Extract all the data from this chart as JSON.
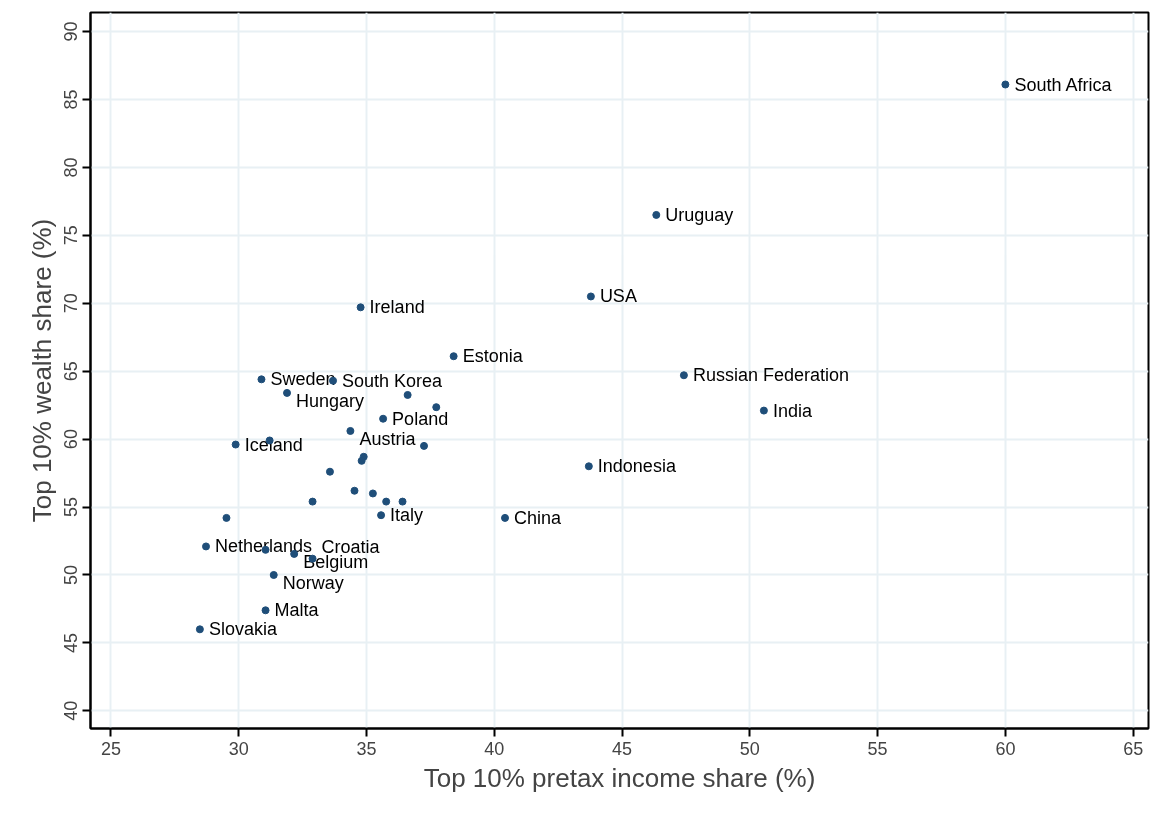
{
  "chart_data": {
    "type": "scatter",
    "xlabel": "Top 10% pretax income share (%)",
    "ylabel": "Top 10% wealth share (%)",
    "x": [
      60.0,
      46.34,
      43.78,
      34.77,
      38.41,
      47.42,
      50.55,
      30.89,
      33.69,
      31.89,
      36.61,
      37.73,
      35.65,
      34.37,
      37.25,
      29.88,
      31.21,
      34.89,
      34.81,
      33.57,
      34.53,
      35.25,
      35.77,
      36.41,
      32.89,
      35.57,
      29.52,
      40.42,
      43.7,
      28.72,
      31.05,
      32.17,
      32.89,
      31.37,
      31.05,
      28.48
    ],
    "values": [
      86.1,
      76.5,
      70.5,
      69.7,
      66.1,
      64.7,
      62.1,
      64.4,
      64.3,
      63.4,
      63.25,
      62.35,
      61.5,
      60.6,
      59.5,
      59.6,
      59.9,
      58.7,
      58.4,
      57.6,
      56.2,
      56.0,
      55.4,
      55.4,
      55.4,
      54.4,
      54.2,
      54.2,
      58.0,
      52.1,
      51.85,
      51.55,
      51.2,
      50.0,
      47.4,
      46.0
    ],
    "color": "#1f4e79",
    "marker": "circle",
    "grid": true,
    "xlim": [
      24.2,
      65.6
    ],
    "xticks": [
      25,
      30,
      35,
      40,
      45,
      50,
      55,
      60,
      65
    ],
    "ylim": [
      38.7,
      91.4
    ],
    "yticks": [
      40,
      45,
      50,
      55,
      60,
      65,
      70,
      75,
      80,
      85,
      90
    ],
    "annotations": [
      {
        "text": "South Africa",
        "x": 60.0,
        "y": 86.1
      },
      {
        "text": "Uruguay",
        "x": 46.34,
        "y": 76.5
      },
      {
        "text": "USA",
        "x": 43.78,
        "y": 70.5
      },
      {
        "text": "Ireland",
        "x": 34.77,
        "y": 69.7
      },
      {
        "text": "Estonia",
        "x": 38.41,
        "y": 66.1
      },
      {
        "text": "Russian Federation",
        "x": 47.42,
        "y": 64.7
      },
      {
        "text": "India",
        "x": 50.55,
        "y": 62.1
      },
      {
        "text": "Sweden",
        "x": 30.89,
        "y": 64.4
      },
      {
        "text": "South Korea",
        "x": 33.69,
        "y": 64.3
      },
      {
        "text": "Hungary",
        "x": 31.89,
        "y": 63.4
      },
      {
        "text": "Poland",
        "x": 35.65,
        "y": 61.5
      },
      {
        "text": "Austria",
        "x": 34.37,
        "y": 60.6
      },
      {
        "text": "Iceland",
        "x": 29.88,
        "y": 59.6
      },
      {
        "text": "Italy",
        "x": 35.57,
        "y": 54.4
      },
      {
        "text": "China",
        "x": 40.42,
        "y": 54.2
      },
      {
        "text": "Indonesia",
        "x": 43.7,
        "y": 58.0
      },
      {
        "text": "Netherlands",
        "x": 28.72,
        "y": 52.1
      },
      {
        "text": "Belgium",
        "x": 32.17,
        "y": 51.55
      },
      {
        "text": "Croatia",
        "x": 32.89,
        "y": 51.2
      },
      {
        "text": "Norway",
        "x": 31.37,
        "y": 50.0
      },
      {
        "text": "Malta",
        "x": 31.05,
        "y": 47.4
      },
      {
        "text": "Slovakia",
        "x": 28.48,
        "y": 46.0
      }
    ]
  }
}
